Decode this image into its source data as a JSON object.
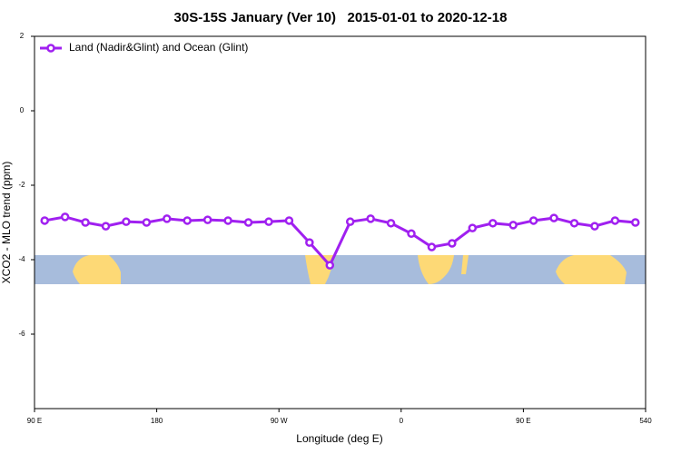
{
  "chart_data": {
    "type": "line",
    "title": "30S-15S January (Ver 10)   2015-01-01 to 2020-12-18",
    "xlabel": "Longitude (deg E)",
    "ylabel": "XCO2 - MLO trend (ppm)",
    "x": [
      97.5,
      112.5,
      127.5,
      142.5,
      157.5,
      172.5,
      187.5,
      202.5,
      217.5,
      232.5,
      247.5,
      262.5,
      277.5,
      292.5,
      307.5,
      322.5,
      337.5,
      352.5,
      367.5,
      382.5,
      397.5,
      412.5,
      427.5,
      442.5,
      457.5,
      472.5,
      487.5,
      502.5,
      517.5,
      532.5
    ],
    "series": [
      {
        "name": "Land (Nadir&Glint) and Ocean (Glint)",
        "color": "#a020f0",
        "values": [
          -2.95,
          -2.85,
          -3.0,
          -3.1,
          -2.98,
          -3.0,
          -2.9,
          -2.95,
          -2.93,
          -2.95,
          -3.0,
          -2.98,
          -2.95,
          -3.54,
          -4.15,
          -2.98,
          -2.9,
          -3.02,
          -3.3,
          -3.66,
          -3.56,
          -3.15,
          -3.02,
          -3.07,
          -2.95,
          -2.88,
          -3.02,
          -3.1,
          -2.95,
          -3.0
        ]
      }
    ],
    "xlim": [
      90,
      540
    ],
    "xticks": [
      {
        "value": 90,
        "label": "90 E"
      },
      180,
      {
        "value": 270,
        "label": "90 W"
      },
      {
        "value": 360,
        "label": "0"
      },
      {
        "value": 450,
        "label": "90 E"
      },
      540
    ],
    "ylim": [
      -8,
      2
    ],
    "yticks": [
      2,
      0,
      -2,
      -4,
      -6
    ],
    "legend": "top-left"
  }
}
